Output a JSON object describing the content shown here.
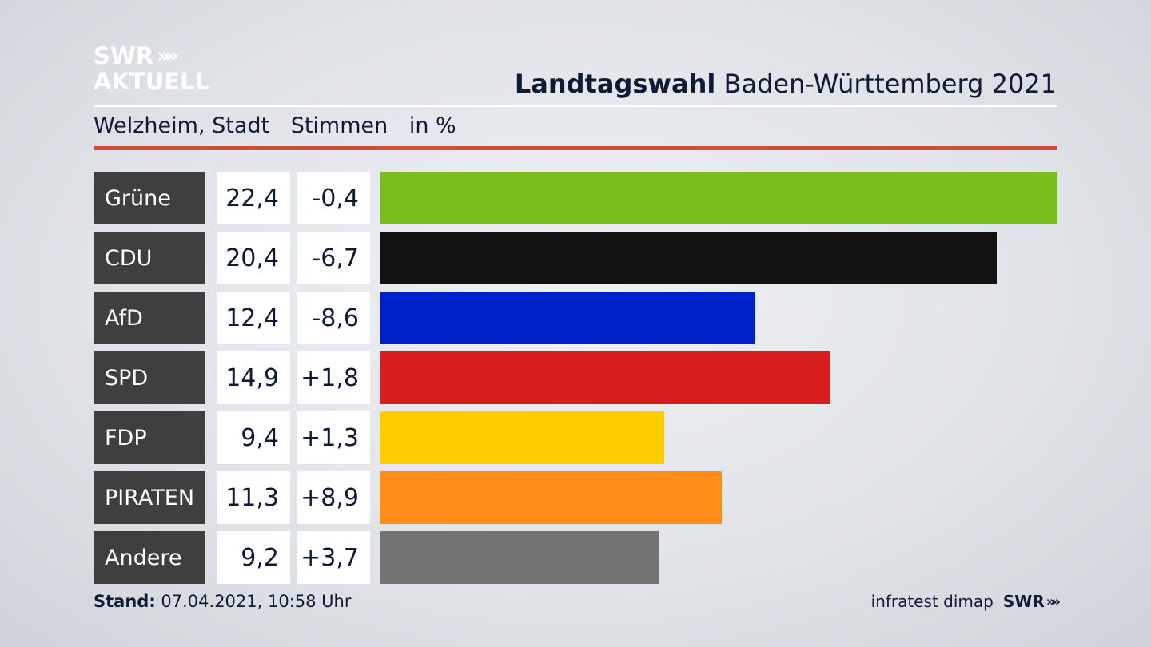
{
  "logo": {
    "line1": "SWR",
    "chevrons": "»»",
    "line2": "AKTUELL"
  },
  "header": {
    "title_bold": "Landtagswahl",
    "title_rest": " Baden-Württemberg 2021"
  },
  "subheader": {
    "place": "Welzheim, Stadt",
    "measure": "Stimmen",
    "unit": "in %"
  },
  "footer": {
    "stand_label": "Stand:",
    "stand_value": " 07.04.2021, 10:58 Uhr",
    "source": "infratest dimap",
    "brand": "SWR",
    "brand_chevrons": "»»"
  },
  "colors": {
    "accent_rule": "#d0493b",
    "label_bg": "#3f3f3f"
  },
  "chart_data": {
    "type": "bar",
    "orientation": "horizontal",
    "title": "Landtagswahl Baden-Württemberg 2021",
    "categories": [
      "Grüne",
      "CDU",
      "AfD",
      "SPD",
      "FDP",
      "PIRATEN",
      "Andere"
    ],
    "values": [
      22.4,
      20.4,
      12.4,
      14.9,
      9.4,
      11.3,
      9.2
    ],
    "value_labels": [
      "22,4",
      "20,4",
      "12,4",
      "14,9",
      "9,4",
      "11,3",
      "9,2"
    ],
    "diff_labels": [
      "-0,4",
      "-6,7",
      "-8,6",
      "+1,8",
      "+1,3",
      "+8,9",
      "+3,7"
    ],
    "colors": [
      "#78be1e",
      "#121212",
      "#0021c8",
      "#d71f1f",
      "#ffcc00",
      "#ff8c17",
      "#737373"
    ],
    "xlim": [
      0,
      22.4
    ],
    "grid": false
  }
}
